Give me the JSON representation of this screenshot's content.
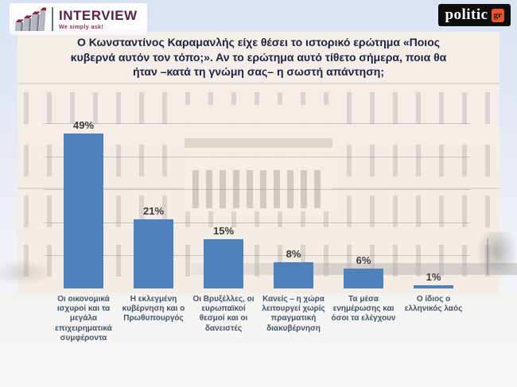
{
  "header": {
    "interview_logo": {
      "brand": "INTERVIEW",
      "tagline": "We simply ask!"
    },
    "politic_logo": {
      "word": "politic",
      "suffix": "gr"
    }
  },
  "title": "Ο Κωνσταντίνος Καραμανλής είχε θέσει το ιστορικό ερώτημα «Ποιος κυβερνά αυτόν τον τόπο;». Αν το ερώτημα αυτό τίθετο σήμερα, ποια θα ήταν –κατά τη γνώμη σας– η σωστή απάντηση;",
  "chart_data": {
    "type": "bar",
    "categories": [
      "Οι οικονομικά ισχυροί και τα μεγάλα επιχειρηματικά συμφέροντα",
      "Η εκλεγμένη κυβέρνηση και ο Πρωθυπουργός",
      "Οι Βρυξέλλες, οι ευρωπαϊκοί θεσμοί και οι δανειστές",
      "Κανείς – η χώρα λειτουργεί χωρίς πραγματική διακυβέρνηση",
      "Τα μέσα ενημέρωσης και όσοι τα ελέγχουν",
      "Ο ίδιος ο ελληνικός λαός"
    ],
    "values": [
      49,
      21,
      15,
      8,
      6,
      1
    ],
    "value_labels": [
      "49%",
      "21%",
      "15%",
      "8%",
      "6%",
      "1%"
    ],
    "title": "",
    "xlabel": "",
    "ylabel": "",
    "ylim": [
      0,
      50
    ],
    "gridline_step": 10,
    "grid": "on",
    "legend": "none",
    "bar_color": "#4f81bd"
  },
  "colors": {
    "bar": "#4f81bd",
    "value_label": "#3b3b3b",
    "category_label": "#44546a",
    "title_text": "#1a2340",
    "interview_maroon": "#5b2144",
    "politic_orange": "#e8532c",
    "politic_black": "#0e0e0e"
  },
  "icons": {
    "interview_bars_icon": "ascending-3d-bar-chart-icon"
  }
}
